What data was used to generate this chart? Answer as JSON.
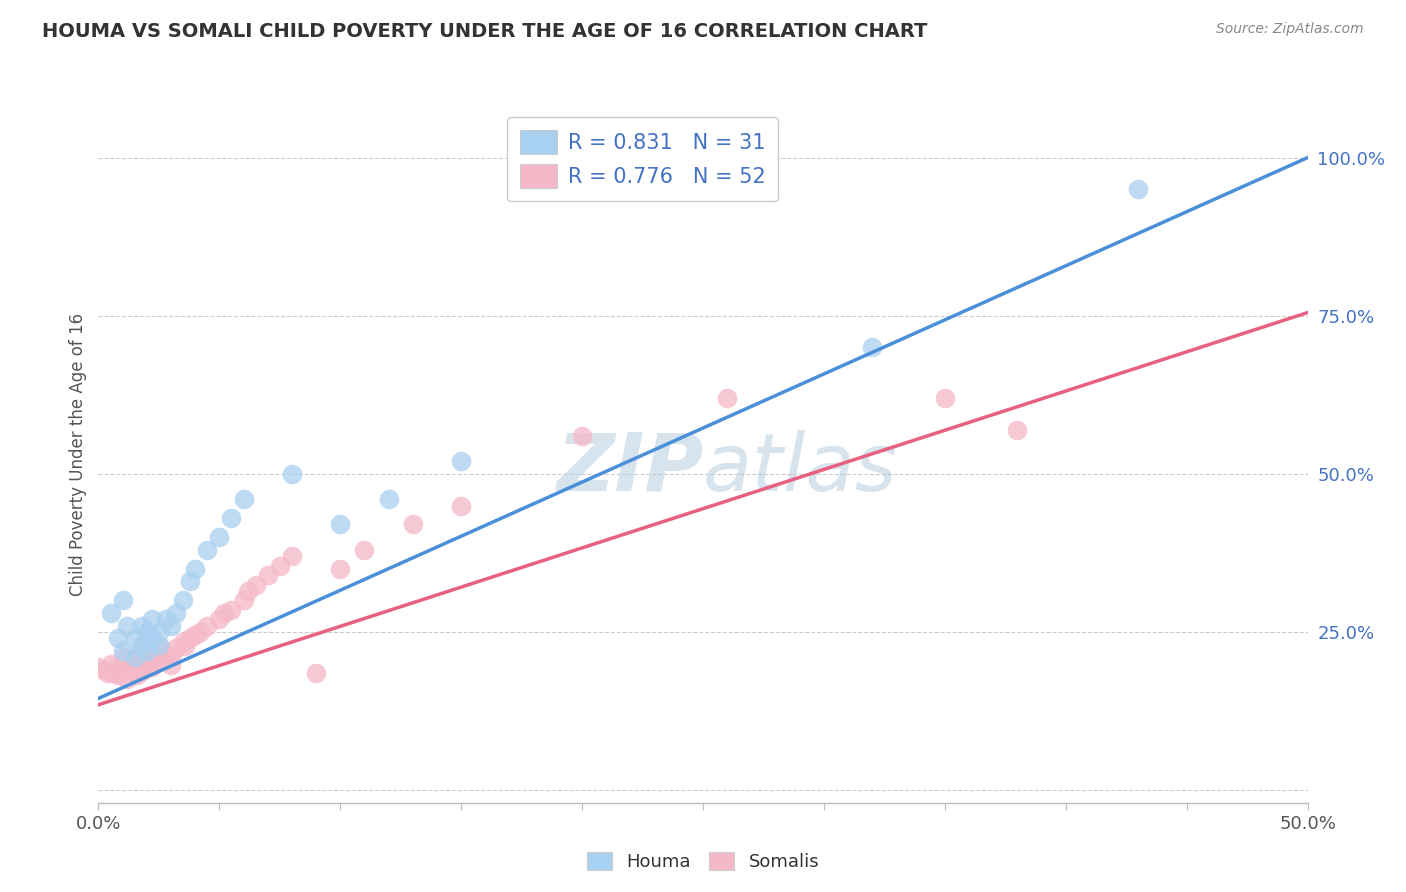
{
  "title": "HOUMA VS SOMALI CHILD POVERTY UNDER THE AGE OF 16 CORRELATION CHART",
  "source": "Source: ZipAtlas.com",
  "ylabel": "Child Poverty Under the Age of 16",
  "xlim": [
    0.0,
    0.5
  ],
  "ylim": [
    -0.02,
    1.08
  ],
  "ytick_positions": [
    0.0,
    0.25,
    0.5,
    0.75,
    1.0
  ],
  "ytick_labels": [
    "",
    "25.0%",
    "50.0%",
    "75.0%",
    "100.0%"
  ],
  "houma_fill": "#A8D0F0",
  "somali_fill": "#F5B8C8",
  "houma_line_color": "#4A90D9",
  "somali_line_color": "#E86080",
  "grid_color": "#CCCCCC",
  "watermark_color": "#C8D8EE",
  "title_color": "#333333",
  "legend_text_color": "#4472C4",
  "R_houma": 0.831,
  "N_houma": 31,
  "R_somali": 0.776,
  "N_somali": 52,
  "houma_line_x0": 0.0,
  "houma_line_y0": 0.145,
  "houma_line_x1": 0.5,
  "houma_line_y1": 1.0,
  "somali_line_x0": 0.0,
  "somali_line_y0": 0.135,
  "somali_line_x1": 0.5,
  "somali_line_y1": 0.755,
  "houma_x": [
    0.005,
    0.008,
    0.01,
    0.01,
    0.012,
    0.015,
    0.015,
    0.018,
    0.018,
    0.02,
    0.02,
    0.022,
    0.022,
    0.025,
    0.025,
    0.028,
    0.03,
    0.032,
    0.035,
    0.038,
    0.04,
    0.045,
    0.05,
    0.055,
    0.06,
    0.08,
    0.1,
    0.12,
    0.15,
    0.32,
    0.43
  ],
  "houma_y": [
    0.28,
    0.24,
    0.3,
    0.22,
    0.26,
    0.24,
    0.21,
    0.26,
    0.23,
    0.25,
    0.22,
    0.27,
    0.24,
    0.25,
    0.23,
    0.27,
    0.26,
    0.28,
    0.3,
    0.33,
    0.35,
    0.38,
    0.4,
    0.43,
    0.46,
    0.5,
    0.42,
    0.46,
    0.52,
    0.7,
    0.95
  ],
  "somali_x": [
    0.0,
    0.002,
    0.004,
    0.005,
    0.006,
    0.007,
    0.008,
    0.01,
    0.01,
    0.012,
    0.012,
    0.014,
    0.015,
    0.016,
    0.017,
    0.018,
    0.018,
    0.02,
    0.02,
    0.022,
    0.022,
    0.024,
    0.025,
    0.026,
    0.028,
    0.03,
    0.03,
    0.032,
    0.035,
    0.036,
    0.038,
    0.04,
    0.042,
    0.045,
    0.05,
    0.052,
    0.055,
    0.06,
    0.062,
    0.065,
    0.07,
    0.075,
    0.08,
    0.09,
    0.1,
    0.11,
    0.13,
    0.15,
    0.2,
    0.26,
    0.35,
    0.38
  ],
  "somali_y": [
    0.195,
    0.19,
    0.185,
    0.2,
    0.185,
    0.192,
    0.182,
    0.195,
    0.21,
    0.188,
    0.175,
    0.195,
    0.205,
    0.182,
    0.2,
    0.188,
    0.215,
    0.2,
    0.215,
    0.21,
    0.195,
    0.205,
    0.215,
    0.225,
    0.215,
    0.21,
    0.198,
    0.225,
    0.235,
    0.228,
    0.24,
    0.245,
    0.25,
    0.26,
    0.27,
    0.28,
    0.285,
    0.3,
    0.315,
    0.325,
    0.34,
    0.355,
    0.37,
    0.185,
    0.35,
    0.38,
    0.42,
    0.45,
    0.56,
    0.62,
    0.62,
    0.57
  ]
}
